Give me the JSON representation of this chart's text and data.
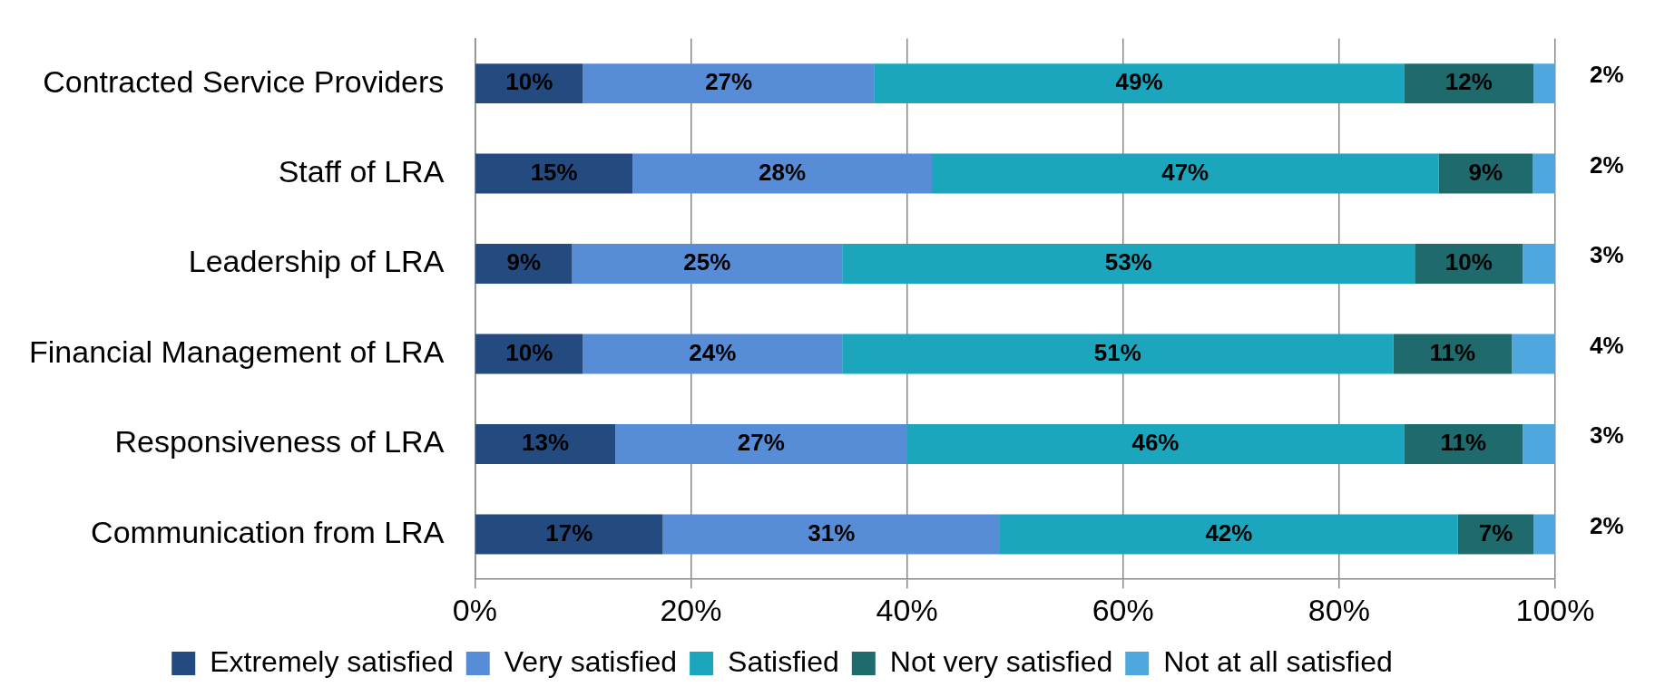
{
  "chart_data": {
    "type": "bar",
    "orientation": "horizontal",
    "stacked": true,
    "categories": [
      "Contracted Service Providers",
      "Staff of LRA",
      "Leadership of LRA",
      "Financial Management of LRA",
      "Responsiveness of LRA",
      "Communication from LRA"
    ],
    "series": [
      {
        "name": "Extremely satisfied",
        "color": "#244b80",
        "values": [
          10,
          14.6,
          9,
          10,
          13,
          17.4
        ],
        "value_labels": [
          "10%",
          "15%",
          "9%",
          "10%",
          "13%",
          "17%"
        ]
      },
      {
        "name": "Very satisfied",
        "color": "#568dd6",
        "values": [
          27,
          27.7,
          25,
          24,
          27,
          31.2
        ],
        "value_labels": [
          "27%",
          "28%",
          "25%",
          "24%",
          "27%",
          "31%"
        ]
      },
      {
        "name": "Satisfied",
        "color": "#1ba6bd",
        "values": [
          49,
          46.9,
          53,
          51,
          46,
          42.4
        ],
        "value_labels": [
          "49%",
          "47%",
          "53%",
          "51%",
          "46%",
          "42%"
        ]
      },
      {
        "name": "Not very satisfied",
        "color": "#1e6a6c",
        "values": [
          12,
          8.7,
          10,
          11,
          11,
          7
        ],
        "value_labels": [
          "12%",
          "9%",
          "10%",
          "11%",
          "11%",
          "7%"
        ]
      },
      {
        "name": "Not at all satisfied",
        "color": "#4fa8dd",
        "values": [
          2,
          2.1,
          3,
          4,
          3,
          2
        ],
        "value_labels": [
          "2%",
          "2%",
          "3%",
          "4%",
          "3%",
          "2%"
        ]
      }
    ],
    "xlim": [
      0,
      100
    ],
    "xticks": [
      {
        "value": 0,
        "label": "0%"
      },
      {
        "value": 20,
        "label": "20%"
      },
      {
        "value": 40,
        "label": "40%"
      },
      {
        "value": 60,
        "label": "60%"
      },
      {
        "value": 80,
        "label": "80%"
      },
      {
        "value": 100,
        "label": "100%"
      }
    ],
    "grid": "x",
    "legend": "bottom"
  }
}
